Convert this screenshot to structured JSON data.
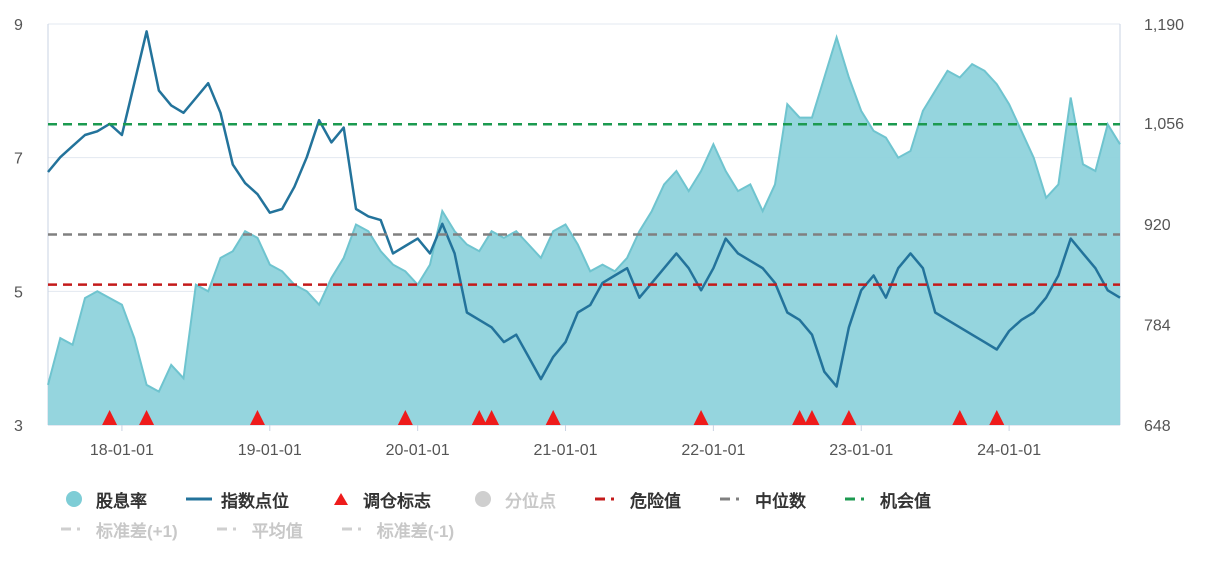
{
  "chart_data": {
    "type": "line",
    "left_axis": {
      "ticks": [
        "3",
        "5",
        "7",
        "9"
      ],
      "min": 3,
      "max": 9
    },
    "right_axis": {
      "ticks": [
        "648",
        "784",
        "920",
        "1,056",
        "1,190"
      ],
      "min": 648,
      "max": 1190
    },
    "x_axis": {
      "ticks": [
        "18-01-01",
        "19-01-01",
        "20-01-01",
        "21-01-01",
        "22-01-01",
        "23-01-01",
        "24-01-01"
      ],
      "start": "2017-07",
      "end": "2024-10"
    },
    "series": [
      {
        "name": "股息率",
        "type": "area",
        "axis": "left",
        "color": "#8fd3dc",
        "points": [
          [
            "2017-07",
            3.6
          ],
          [
            "2017-08",
            4.3
          ],
          [
            "2017-09",
            4.2
          ],
          [
            "2017-10",
            4.9
          ],
          [
            "2017-11",
            5.0
          ],
          [
            "2017-12",
            4.9
          ],
          [
            "2018-01",
            4.8
          ],
          [
            "2018-02",
            4.3
          ],
          [
            "2018-03",
            3.6
          ],
          [
            "2018-04",
            3.5
          ],
          [
            "2018-05",
            3.9
          ],
          [
            "2018-06",
            3.7
          ],
          [
            "2018-07",
            5.1
          ],
          [
            "2018-08",
            5.0
          ],
          [
            "2018-09",
            5.5
          ],
          [
            "2018-10",
            5.6
          ],
          [
            "2018-11",
            5.9
          ],
          [
            "2018-12",
            5.8
          ],
          [
            "2019-01",
            5.4
          ],
          [
            "2019-02",
            5.3
          ],
          [
            "2019-03",
            5.1
          ],
          [
            "2019-04",
            5.0
          ],
          [
            "2019-05",
            4.8
          ],
          [
            "2019-06",
            5.2
          ],
          [
            "2019-07",
            5.5
          ],
          [
            "2019-08",
            6.0
          ],
          [
            "2019-09",
            5.9
          ],
          [
            "2019-10",
            5.6
          ],
          [
            "2019-11",
            5.4
          ],
          [
            "2019-12",
            5.3
          ],
          [
            "2020-01",
            5.1
          ],
          [
            "2020-02",
            5.4
          ],
          [
            "2020-03",
            6.2
          ],
          [
            "2020-04",
            5.9
          ],
          [
            "2020-05",
            5.7
          ],
          [
            "2020-06",
            5.6
          ],
          [
            "2020-07",
            5.9
          ],
          [
            "2020-08",
            5.8
          ],
          [
            "2020-09",
            5.9
          ],
          [
            "2020-10",
            5.7
          ],
          [
            "2020-11",
            5.5
          ],
          [
            "2020-12",
            5.9
          ],
          [
            "2021-01",
            6.0
          ],
          [
            "2021-02",
            5.7
          ],
          [
            "2021-03",
            5.3
          ],
          [
            "2021-04",
            5.4
          ],
          [
            "2021-05",
            5.3
          ],
          [
            "2021-06",
            5.5
          ],
          [
            "2021-07",
            5.9
          ],
          [
            "2021-08",
            6.2
          ],
          [
            "2021-09",
            6.6
          ],
          [
            "2021-10",
            6.8
          ],
          [
            "2021-11",
            6.5
          ],
          [
            "2021-12",
            6.8
          ],
          [
            "2022-01",
            7.2
          ],
          [
            "2022-02",
            6.8
          ],
          [
            "2022-03",
            6.5
          ],
          [
            "2022-04",
            6.6
          ],
          [
            "2022-05",
            6.2
          ],
          [
            "2022-06",
            6.6
          ],
          [
            "2022-07",
            7.8
          ],
          [
            "2022-08",
            7.6
          ],
          [
            "2022-09",
            7.6
          ],
          [
            "2022-10",
            8.2
          ],
          [
            "2022-11",
            8.8
          ],
          [
            "2022-12",
            8.2
          ],
          [
            "2023-01",
            7.7
          ],
          [
            "2023-02",
            7.4
          ],
          [
            "2023-03",
            7.3
          ],
          [
            "2023-04",
            7.0
          ],
          [
            "2023-05",
            7.1
          ],
          [
            "2023-06",
            7.7
          ],
          [
            "2023-07",
            8.0
          ],
          [
            "2023-08",
            8.3
          ],
          [
            "2023-09",
            8.2
          ],
          [
            "2023-10",
            8.4
          ],
          [
            "2023-11",
            8.3
          ],
          [
            "2023-12",
            8.1
          ],
          [
            "2024-01",
            7.8
          ],
          [
            "2024-02",
            7.4
          ],
          [
            "2024-03",
            7.0
          ],
          [
            "2024-04",
            6.4
          ],
          [
            "2024-05",
            6.6
          ],
          [
            "2024-06",
            7.9
          ],
          [
            "2024-07",
            6.9
          ],
          [
            "2024-08",
            6.8
          ],
          [
            "2024-09",
            7.5
          ],
          [
            "2024-10",
            7.2
          ]
        ]
      },
      {
        "name": "指数点位",
        "type": "line",
        "axis": "right",
        "color": "#23739b",
        "points": [
          [
            "2017-07",
            990
          ],
          [
            "2017-08",
            1010
          ],
          [
            "2017-09",
            1025
          ],
          [
            "2017-10",
            1040
          ],
          [
            "2017-11",
            1045
          ],
          [
            "2017-12",
            1055
          ],
          [
            "2018-01",
            1040
          ],
          [
            "2018-02",
            1110
          ],
          [
            "2018-03",
            1180
          ],
          [
            "2018-04",
            1100
          ],
          [
            "2018-05",
            1080
          ],
          [
            "2018-06",
            1070
          ],
          [
            "2018-07",
            1090
          ],
          [
            "2018-08",
            1110
          ],
          [
            "2018-09",
            1070
          ],
          [
            "2018-10",
            1000
          ],
          [
            "2018-11",
            975
          ],
          [
            "2018-12",
            960
          ],
          [
            "2019-01",
            935
          ],
          [
            "2019-02",
            940
          ],
          [
            "2019-03",
            970
          ],
          [
            "2019-04",
            1010
          ],
          [
            "2019-05",
            1060
          ],
          [
            "2019-06",
            1030
          ],
          [
            "2019-07",
            1050
          ],
          [
            "2019-08",
            940
          ],
          [
            "2019-09",
            930
          ],
          [
            "2019-10",
            925
          ],
          [
            "2019-11",
            880
          ],
          [
            "2019-12",
            890
          ],
          [
            "2020-01",
            900
          ],
          [
            "2020-02",
            880
          ],
          [
            "2020-03",
            920
          ],
          [
            "2020-04",
            880
          ],
          [
            "2020-05",
            800
          ],
          [
            "2020-06",
            790
          ],
          [
            "2020-07",
            780
          ],
          [
            "2020-08",
            760
          ],
          [
            "2020-09",
            770
          ],
          [
            "2020-10",
            740
          ],
          [
            "2020-11",
            710
          ],
          [
            "2020-12",
            740
          ],
          [
            "2021-01",
            760
          ],
          [
            "2021-02",
            800
          ],
          [
            "2021-03",
            810
          ],
          [
            "2021-04",
            840
          ],
          [
            "2021-05",
            850
          ],
          [
            "2021-06",
            860
          ],
          [
            "2021-07",
            820
          ],
          [
            "2021-08",
            840
          ],
          [
            "2021-09",
            860
          ],
          [
            "2021-10",
            880
          ],
          [
            "2021-11",
            860
          ],
          [
            "2021-12",
            830
          ],
          [
            "2022-01",
            860
          ],
          [
            "2022-02",
            900
          ],
          [
            "2022-03",
            880
          ],
          [
            "2022-04",
            870
          ],
          [
            "2022-05",
            860
          ],
          [
            "2022-06",
            840
          ],
          [
            "2022-07",
            800
          ],
          [
            "2022-08",
            790
          ],
          [
            "2022-09",
            770
          ],
          [
            "2022-10",
            720
          ],
          [
            "2022-11",
            700
          ],
          [
            "2022-12",
            780
          ],
          [
            "2023-01",
            830
          ],
          [
            "2023-02",
            850
          ],
          [
            "2023-03",
            820
          ],
          [
            "2023-04",
            860
          ],
          [
            "2023-05",
            880
          ],
          [
            "2023-06",
            860
          ],
          [
            "2023-07",
            800
          ],
          [
            "2023-08",
            790
          ],
          [
            "2023-09",
            780
          ],
          [
            "2023-10",
            770
          ],
          [
            "2023-11",
            760
          ],
          [
            "2023-12",
            750
          ],
          [
            "2024-01",
            775
          ],
          [
            "2024-02",
            790
          ],
          [
            "2024-03",
            800
          ],
          [
            "2024-04",
            820
          ],
          [
            "2024-05",
            850
          ],
          [
            "2024-06",
            900
          ],
          [
            "2024-07",
            880
          ],
          [
            "2024-08",
            860
          ],
          [
            "2024-09",
            830
          ],
          [
            "2024-10",
            820
          ]
        ]
      },
      {
        "name": "调仓标志",
        "type": "marker",
        "color": "#ee1b1b",
        "x": [
          "2017-12",
          "2018-03",
          "2018-12",
          "2019-12",
          "2020-06",
          "2020-07",
          "2020-12",
          "2021-12",
          "2022-08",
          "2022-09",
          "2022-12",
          "2023-09",
          "2023-12"
        ]
      },
      {
        "name": "危险值",
        "type": "hline",
        "axis": "left",
        "value": 5.1,
        "color": "#c41a1a"
      },
      {
        "name": "中位数",
        "type": "hline",
        "axis": "left",
        "value": 5.85,
        "color": "#808080"
      },
      {
        "name": "机会值",
        "type": "hline",
        "axis": "left",
        "value": 7.5,
        "color": "#1c9a50"
      }
    ],
    "legend": {
      "items": [
        {
          "label": "股息率",
          "kind": "circle",
          "color": "#7ecdd6",
          "active": true
        },
        {
          "label": "指数点位",
          "kind": "line",
          "color": "#23739b",
          "active": true
        },
        {
          "label": "调仓标志",
          "kind": "triangle",
          "color": "#ee1b1b",
          "active": true
        },
        {
          "label": "分位点",
          "kind": "circle",
          "color": "#cfcfcf",
          "active": false
        },
        {
          "label": "危险值",
          "kind": "dash",
          "color": "#c41a1a",
          "active": true
        },
        {
          "label": "中位数",
          "kind": "dash",
          "color": "#808080",
          "active": true
        },
        {
          "label": "机会值",
          "kind": "dash",
          "color": "#1c9a50",
          "active": true
        },
        {
          "label": "标准差(+1)",
          "kind": "dash",
          "color": "#cfcfcf",
          "active": false
        },
        {
          "label": "平均值",
          "kind": "dash",
          "color": "#cfcfcf",
          "active": false
        },
        {
          "label": "标准差(-1)",
          "kind": "dash",
          "color": "#cfcfcf",
          "active": false
        }
      ],
      "placement": "bottom"
    },
    "grid": true
  }
}
